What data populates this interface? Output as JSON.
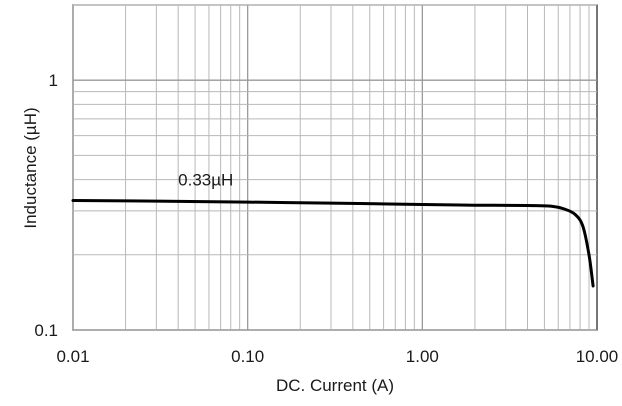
{
  "chart_data": {
    "type": "line",
    "title": "",
    "xlabel": "DC. Current (A)",
    "ylabel": "Inductance (µH)",
    "x_scale": "log",
    "y_scale": "log",
    "xlim": [
      0.01,
      10
    ],
    "ylim": [
      0.1,
      2
    ],
    "grid": true,
    "x_tick_labels": [
      {
        "value": 0.01,
        "label": "0.01"
      },
      {
        "value": 0.1,
        "label": "0.10"
      },
      {
        "value": 1,
        "label": "1.00"
      },
      {
        "value": 10,
        "label": "10.00"
      }
    ],
    "y_tick_labels": [
      {
        "value": 0.1,
        "label": "0.1"
      },
      {
        "value": 1,
        "label": "1"
      }
    ],
    "annotations": [
      {
        "text": "0.33µH",
        "x": 0.04,
        "y": 0.4
      }
    ],
    "series": [
      {
        "color": "#000000",
        "x": [
          0.01,
          0.03,
          0.1,
          0.3,
          1,
          2,
          4,
          5.5,
          6.5,
          7.5,
          8.3,
          9,
          9.5
        ],
        "y": [
          0.33,
          0.328,
          0.325,
          0.322,
          0.318,
          0.316,
          0.315,
          0.313,
          0.305,
          0.29,
          0.26,
          0.2,
          0.15
        ]
      }
    ]
  }
}
